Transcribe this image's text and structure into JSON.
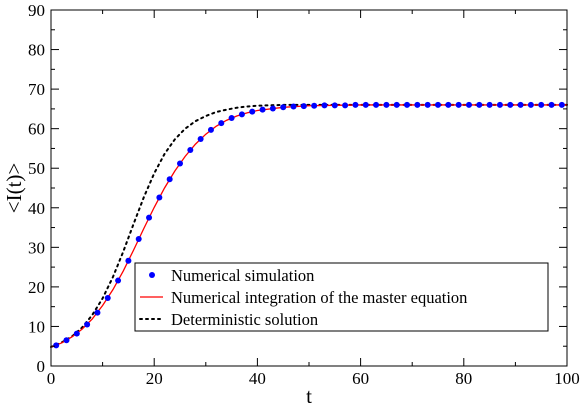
{
  "chart_data": {
    "type": "line",
    "title": "",
    "xlabel": "t",
    "ylabel": "<I(t)>",
    "xlim": [
      0,
      100
    ],
    "ylim": [
      0,
      90
    ],
    "xticks": [
      0,
      20,
      40,
      60,
      80,
      100
    ],
    "yticks": [
      0,
      10,
      20,
      30,
      40,
      50,
      60,
      70,
      80,
      90
    ],
    "xtick_labels": [
      "0",
      "20",
      "40",
      "60",
      "80",
      "100"
    ],
    "ytick_labels": [
      "0",
      "10",
      "20",
      "30",
      "40",
      "50",
      "60",
      "70",
      "80",
      "90"
    ],
    "grid": false,
    "legend_position": "bottom-right",
    "series": [
      {
        "name": "Numerical simulation",
        "style": "markers",
        "color": "#0000ff",
        "x": [
          1,
          3,
          5,
          7,
          9,
          11,
          13,
          15,
          17,
          19,
          21,
          23,
          25,
          27,
          29,
          31,
          33,
          35,
          37,
          39,
          41,
          43,
          45,
          47,
          49,
          51,
          53,
          55,
          57,
          59,
          61,
          63,
          65,
          67,
          69,
          71,
          73,
          75,
          77,
          79,
          81,
          83,
          85,
          87,
          89,
          91,
          93,
          95,
          97,
          99
        ],
        "y": [
          5.2,
          6.5,
          8.2,
          10.5,
          13.5,
          17.2,
          21.6,
          26.6,
          32.1,
          37.5,
          42.6,
          47.2,
          51.2,
          54.6,
          57.4,
          59.7,
          61.4,
          62.7,
          63.6,
          64.3,
          64.8,
          65.1,
          65.4,
          65.6,
          65.7,
          65.8,
          65.9,
          65.9,
          65.9,
          66.0,
          66.0,
          66.0,
          66.0,
          66.0,
          66.0,
          66.0,
          66.0,
          66.0,
          66.0,
          66.0,
          66.0,
          66.0,
          66.0,
          66.0,
          66.0,
          66.0,
          66.0,
          66.0,
          66.0,
          66.0
        ]
      },
      {
        "name": "Numerical integration of the master equation",
        "style": "solid",
        "color": "#ff0000",
        "x": [
          0,
          2,
          4,
          6,
          8,
          10,
          12,
          14,
          16,
          18,
          20,
          22,
          24,
          26,
          28,
          30,
          32,
          34,
          36,
          38,
          40,
          45,
          50,
          55,
          60,
          70,
          80,
          90,
          100
        ],
        "y": [
          4.8,
          5.8,
          7.3,
          9.3,
          11.9,
          15.3,
          19.3,
          24.0,
          29.3,
          34.8,
          40.1,
          45.0,
          49.3,
          53.0,
          56.1,
          58.6,
          60.6,
          62.1,
          63.2,
          64.0,
          64.6,
          65.4,
          65.8,
          65.9,
          66.0,
          66.0,
          66.0,
          66.0,
          66.0
        ]
      },
      {
        "name": "Deterministic solution",
        "style": "dotted",
        "color": "#000000",
        "x": [
          0,
          2,
          4,
          6,
          8,
          10,
          12,
          14,
          16,
          18,
          20,
          22,
          24,
          26,
          28,
          30,
          32,
          34,
          36,
          38,
          40,
          42,
          45,
          50,
          60,
          70,
          80,
          90,
          100
        ],
        "y": [
          4.8,
          5.9,
          7.4,
          9.7,
          12.9,
          17.1,
          22.5,
          28.9,
          35.9,
          42.7,
          48.7,
          53.6,
          57.3,
          60.0,
          61.9,
          63.2,
          64.2,
          64.8,
          65.3,
          65.6,
          65.8,
          65.9,
          66.0,
          66.0,
          66.0,
          66.0,
          66.0,
          66.0,
          66.0
        ]
      }
    ]
  }
}
